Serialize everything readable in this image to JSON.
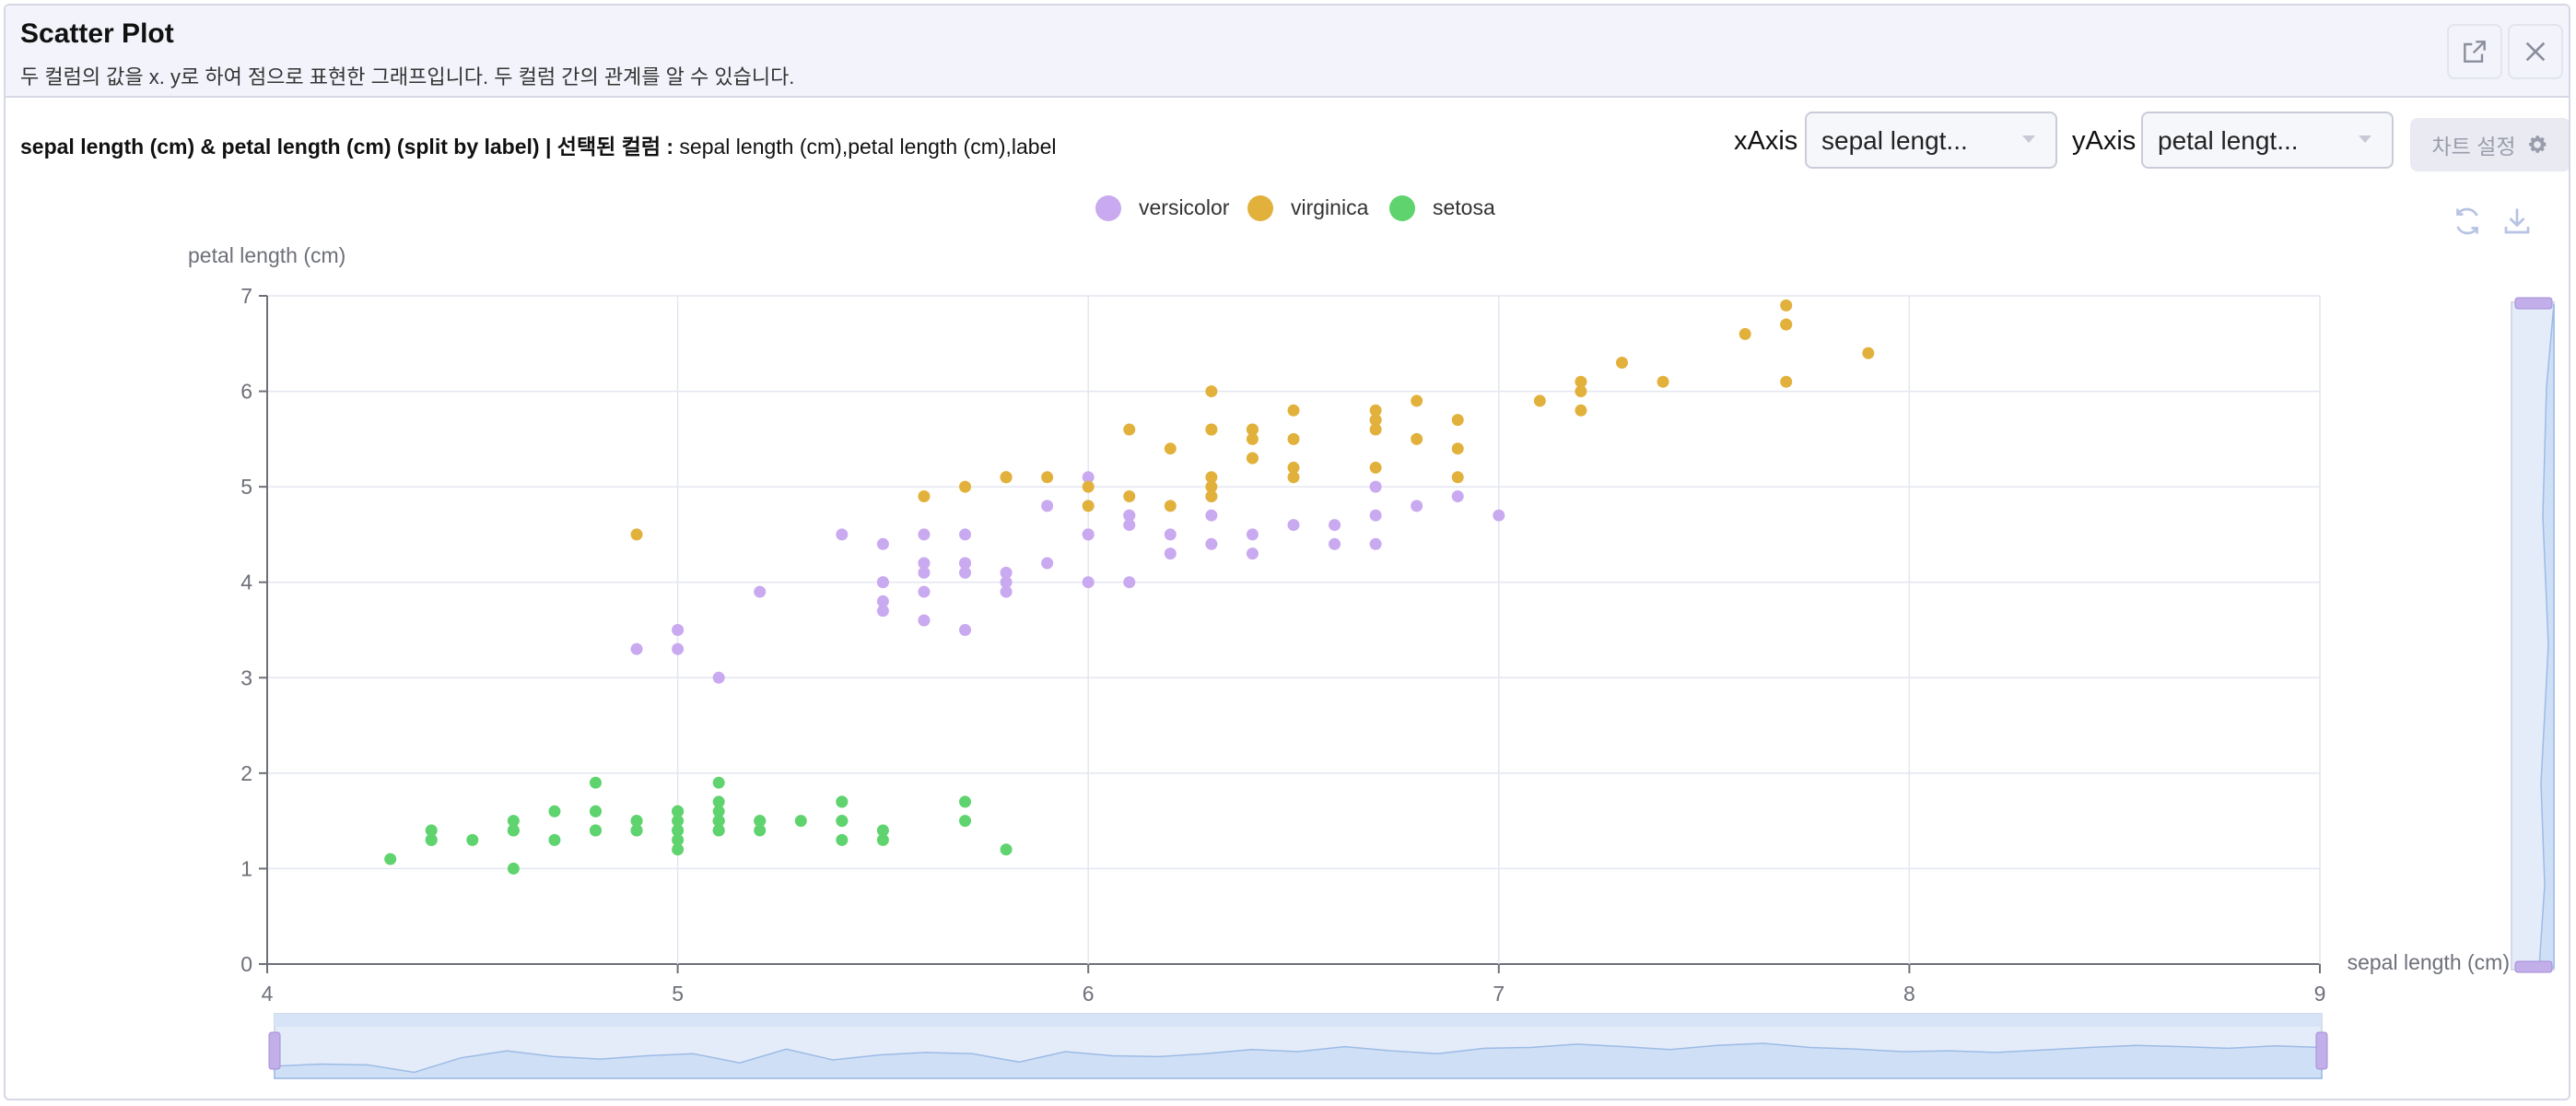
{
  "header": {
    "title": "Scatter Plot",
    "description": "두 컬럼의 값을 x. y로 하여 점으로 표현한 그래프입니다. 두 컬럼 간의 관계를 알 수 있습니다.",
    "icons": [
      "open-external-icon",
      "close-icon"
    ]
  },
  "toolbar": {
    "chart_title": "sepal length (cm) & petal length (cm) (split by label) | 선택된 컬럼 :",
    "selected_columns": " sepal length (cm),petal length (cm),label",
    "x_axis_label": "xAxis",
    "x_axis_value": "sepal lengt...",
    "y_axis_label": "yAxis",
    "y_axis_value": "petal lengt...",
    "settings_label": "차트 설정",
    "icons": [
      "refresh-icon",
      "download-icon",
      "gear-icon"
    ]
  },
  "colors": {
    "versicolor": "#c9a9ef",
    "virginica": "#e2b13c",
    "setosa": "#5fd36e",
    "grid": "#e4e6f1",
    "slider": "#d7e3f6"
  },
  "chart_data": {
    "type": "scatter",
    "xlabel": "sepal length (cm)",
    "ylabel": "petal length (cm)",
    "xlim": [
      4,
      9
    ],
    "ylim": [
      0,
      7
    ],
    "xticks": [
      4,
      5,
      6,
      7,
      8,
      9
    ],
    "yticks": [
      0,
      1,
      2,
      3,
      4,
      5,
      6,
      7
    ],
    "grid": true,
    "legend_position": "top",
    "series": [
      {
        "name": "versicolor",
        "color": "#c9a9ef",
        "points": [
          [
            7.0,
            4.7
          ],
          [
            6.4,
            4.5
          ],
          [
            6.9,
            4.9
          ],
          [
            5.5,
            4.0
          ],
          [
            6.5,
            4.6
          ],
          [
            5.7,
            4.5
          ],
          [
            6.3,
            4.7
          ],
          [
            4.9,
            3.3
          ],
          [
            6.6,
            4.6
          ],
          [
            5.2,
            3.9
          ],
          [
            5.0,
            3.5
          ],
          [
            5.9,
            4.2
          ],
          [
            6.0,
            4.0
          ],
          [
            6.1,
            4.7
          ],
          [
            5.6,
            3.6
          ],
          [
            6.7,
            4.4
          ],
          [
            5.6,
            4.5
          ],
          [
            5.8,
            4.1
          ],
          [
            6.2,
            4.5
          ],
          [
            5.6,
            3.9
          ],
          [
            5.9,
            4.8
          ],
          [
            6.1,
            4.0
          ],
          [
            6.3,
            4.9
          ],
          [
            6.1,
            4.7
          ],
          [
            6.4,
            4.3
          ],
          [
            6.6,
            4.4
          ],
          [
            6.8,
            4.8
          ],
          [
            6.7,
            5.0
          ],
          [
            6.0,
            4.5
          ],
          [
            5.7,
            3.5
          ],
          [
            5.5,
            3.8
          ],
          [
            5.5,
            3.7
          ],
          [
            5.8,
            3.9
          ],
          [
            6.0,
            5.1
          ],
          [
            5.4,
            4.5
          ],
          [
            6.0,
            4.5
          ],
          [
            6.7,
            4.7
          ],
          [
            6.3,
            4.4
          ],
          [
            5.6,
            4.1
          ],
          [
            5.5,
            4.0
          ],
          [
            5.5,
            4.4
          ],
          [
            6.1,
            4.6
          ],
          [
            5.8,
            4.0
          ],
          [
            5.0,
            3.3
          ],
          [
            5.6,
            4.2
          ],
          [
            5.7,
            4.2
          ],
          [
            5.7,
            4.2
          ],
          [
            6.2,
            4.3
          ],
          [
            5.1,
            3.0
          ],
          [
            5.7,
            4.1
          ]
        ]
      },
      {
        "name": "virginica",
        "color": "#e2b13c",
        "points": [
          [
            6.3,
            6.0
          ],
          [
            5.8,
            5.1
          ],
          [
            7.1,
            5.9
          ],
          [
            6.3,
            5.6
          ],
          [
            6.5,
            5.8
          ],
          [
            7.6,
            6.6
          ],
          [
            4.9,
            4.5
          ],
          [
            7.3,
            6.3
          ],
          [
            6.7,
            5.8
          ],
          [
            7.2,
            6.1
          ],
          [
            6.5,
            5.1
          ],
          [
            6.4,
            5.3
          ],
          [
            6.8,
            5.5
          ],
          [
            5.7,
            5.0
          ],
          [
            5.8,
            5.1
          ],
          [
            6.4,
            5.3
          ],
          [
            6.5,
            5.5
          ],
          [
            7.7,
            6.7
          ],
          [
            7.7,
            6.9
          ],
          [
            6.0,
            5.0
          ],
          [
            6.9,
            5.7
          ],
          [
            5.6,
            4.9
          ],
          [
            7.7,
            6.7
          ],
          [
            6.3,
            4.9
          ],
          [
            6.7,
            5.7
          ],
          [
            7.2,
            6.0
          ],
          [
            6.2,
            4.8
          ],
          [
            6.1,
            4.9
          ],
          [
            6.4,
            5.6
          ],
          [
            7.2,
            5.8
          ],
          [
            7.4,
            6.1
          ],
          [
            7.9,
            6.4
          ],
          [
            6.4,
            5.6
          ],
          [
            6.3,
            5.1
          ],
          [
            6.1,
            5.6
          ],
          [
            7.7,
            6.1
          ],
          [
            6.3,
            5.6
          ],
          [
            6.4,
            5.5
          ],
          [
            6.0,
            4.8
          ],
          [
            6.9,
            5.4
          ],
          [
            6.7,
            5.6
          ],
          [
            6.9,
            5.1
          ],
          [
            5.8,
            5.1
          ],
          [
            6.8,
            5.9
          ],
          [
            6.7,
            5.7
          ],
          [
            6.7,
            5.2
          ],
          [
            6.3,
            5.0
          ],
          [
            6.5,
            5.2
          ],
          [
            6.2,
            5.4
          ],
          [
            5.9,
            5.1
          ]
        ]
      },
      {
        "name": "setosa",
        "color": "#5fd36e",
        "points": [
          [
            5.1,
            1.4
          ],
          [
            4.9,
            1.4
          ],
          [
            4.7,
            1.3
          ],
          [
            4.6,
            1.5
          ],
          [
            5.0,
            1.4
          ],
          [
            5.4,
            1.7
          ],
          [
            4.6,
            1.4
          ],
          [
            5.0,
            1.5
          ],
          [
            4.4,
            1.4
          ],
          [
            4.9,
            1.5
          ],
          [
            5.4,
            1.5
          ],
          [
            4.8,
            1.6
          ],
          [
            4.8,
            1.4
          ],
          [
            4.3,
            1.1
          ],
          [
            5.8,
            1.2
          ],
          [
            5.7,
            1.5
          ],
          [
            5.4,
            1.3
          ],
          [
            5.1,
            1.4
          ],
          [
            5.7,
            1.7
          ],
          [
            5.1,
            1.5
          ],
          [
            5.4,
            1.7
          ],
          [
            5.1,
            1.5
          ],
          [
            4.6,
            1.0
          ],
          [
            5.1,
            1.7
          ],
          [
            4.8,
            1.9
          ],
          [
            5.0,
            1.6
          ],
          [
            5.0,
            1.6
          ],
          [
            5.2,
            1.5
          ],
          [
            5.2,
            1.4
          ],
          [
            4.7,
            1.6
          ],
          [
            4.8,
            1.6
          ],
          [
            5.4,
            1.5
          ],
          [
            5.2,
            1.5
          ],
          [
            5.5,
            1.4
          ],
          [
            4.9,
            1.5
          ],
          [
            5.0,
            1.2
          ],
          [
            5.5,
            1.3
          ],
          [
            4.9,
            1.4
          ],
          [
            4.4,
            1.3
          ],
          [
            5.1,
            1.5
          ],
          [
            5.0,
            1.3
          ],
          [
            4.5,
            1.3
          ],
          [
            4.4,
            1.3
          ],
          [
            5.0,
            1.6
          ],
          [
            5.1,
            1.9
          ],
          [
            4.8,
            1.4
          ],
          [
            5.1,
            1.6
          ],
          [
            4.6,
            1.4
          ],
          [
            5.3,
            1.5
          ],
          [
            5.0,
            1.4
          ]
        ]
      }
    ]
  }
}
